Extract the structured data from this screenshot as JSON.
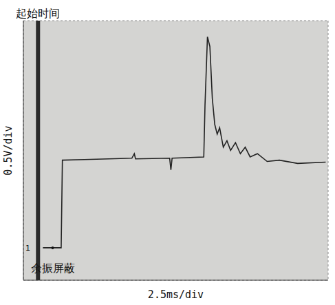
{
  "chart_data": {
    "type": "line",
    "x_label": "2.5ms/div",
    "y_label": "0.5V/div",
    "x": [
      1.6,
      3.1,
      3.2,
      5,
      7,
      8.9,
      9.1,
      9.2,
      12,
      12.1,
      12.2,
      14.8,
      14.9,
      15.1,
      15.3,
      15.5,
      15.7,
      15.9,
      16.1,
      16.4,
      16.7,
      17,
      17.4,
      17.8,
      18.2,
      18.6,
      19.2,
      20,
      21,
      22.5,
      24.8
    ],
    "values": [
      0,
      0,
      1.35,
      1.36,
      1.37,
      1.38,
      1.45,
      1.37,
      1.38,
      1.2,
      1.38,
      1.4,
      2.2,
      3.25,
      3.1,
      2.3,
      1.9,
      1.75,
      1.85,
      1.55,
      1.65,
      1.5,
      1.62,
      1.45,
      1.55,
      1.4,
      1.45,
      1.33,
      1.35,
      1.3,
      1.32
    ],
    "color": "#222222",
    "xlim": [
      0,
      25
    ],
    "xticks": [
      0,
      2.5,
      5,
      7.5,
      10,
      12.5,
      15,
      17.5,
      20,
      22.5,
      25
    ],
    "ylim": [
      -0.5,
      3.5
    ],
    "yticks": [
      -0.5,
      0,
      0.5,
      1,
      1.5,
      2,
      2.5,
      3,
      3.5
    ],
    "grid": true,
    "tick_labels": false,
    "annotations": [
      {
        "text": "起始时间",
        "x": 1.2
      },
      {
        "text": "余振屏蔽",
        "x": 2.4,
        "y": 0
      },
      {
        "text": "1",
        "x": 0,
        "y": 0
      }
    ]
  }
}
